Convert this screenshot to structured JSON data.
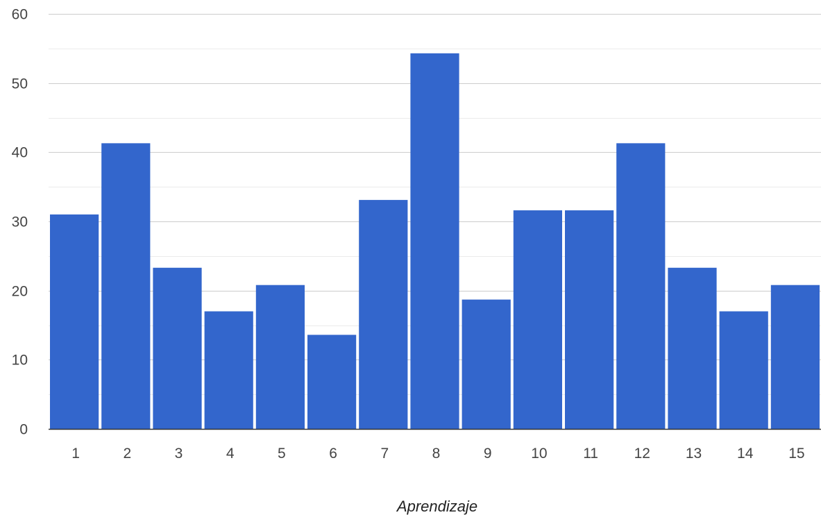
{
  "chart_data": {
    "type": "bar",
    "categories": [
      "1",
      "2",
      "3",
      "4",
      "5",
      "6",
      "7",
      "8",
      "9",
      "10",
      "11",
      "12",
      "13",
      "14",
      "15"
    ],
    "values": [
      31,
      41.3,
      23.3,
      17,
      20.8,
      13.6,
      33.1,
      54.3,
      18.7,
      31.6,
      31.6,
      41.3,
      23.3,
      17,
      20.8
    ],
    "title": "",
    "xlabel": "Aprendizaje",
    "ylabel": "",
    "ylim": [
      0,
      60
    ],
    "yticks": [
      0,
      10,
      20,
      30,
      40,
      50,
      60
    ],
    "grid": true,
    "minor_grid": true,
    "bar_color": "#3366cc",
    "grid_color": "#cccccc",
    "minor_grid_color": "#ebebeb",
    "axis_color": "#333333"
  }
}
